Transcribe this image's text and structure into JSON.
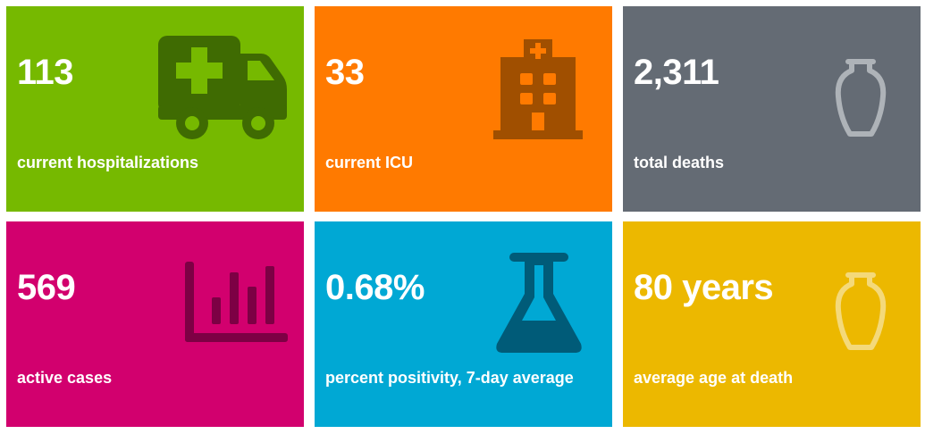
{
  "colors": {
    "green": "#76b900",
    "orange": "#ff7a00",
    "slate": "#646b74",
    "magenta": "#d2006e",
    "cyan": "#00a8d4",
    "gold": "#ecb800"
  },
  "stats": [
    {
      "value": "113",
      "label": "current hospitalizations",
      "icon": "ambulance-icon"
    },
    {
      "value": "33",
      "label": "current ICU",
      "icon": "hospital-icon"
    },
    {
      "value": "2,311",
      "label": "total deaths",
      "icon": "urn-icon"
    },
    {
      "value": "569",
      "label": "active cases",
      "icon": "bar-chart-icon"
    },
    {
      "value": "0.68%",
      "label": "percent positivity, 7-day average",
      "icon": "flask-icon"
    },
    {
      "value": "80 years",
      "label": "average age at death",
      "icon": "urn-icon"
    }
  ]
}
